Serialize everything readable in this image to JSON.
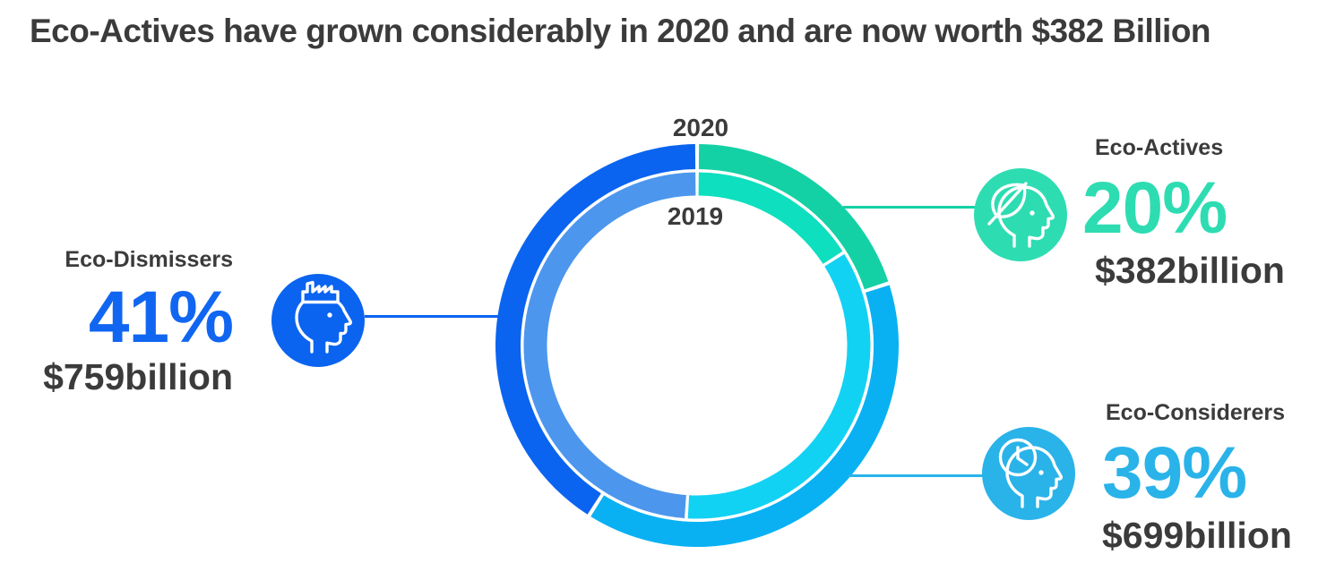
{
  "title": "Eco-Actives have grown considerably in 2020 and are now worth $382 Billion",
  "colors": {
    "dark_text": "#3b3b3b",
    "blue_2020": "#0b64f0",
    "blue_2019": "#4d96ee",
    "blue_accent": "#1166f1",
    "cyan_2020": "#09b1f3",
    "cyan_2019": "#12d2f3",
    "cyan_accent": "#29b3e9",
    "green_2020": "#14d1a5",
    "green_2019": "#0edfbe",
    "green_accent": "#2edcb2"
  },
  "chart_data": {
    "type": "donut",
    "title": "Eco-Actives have grown considerably in 2020 and are now worth $382 Billion",
    "direction": "clockwise",
    "start_angle_deg": 0,
    "rings": [
      {
        "label": "2020",
        "position": "outer",
        "segments": [
          {
            "name": "Eco-Actives",
            "value": 20,
            "color_key": "green_2020"
          },
          {
            "name": "Eco-Considerers",
            "value": 39,
            "color_key": "cyan_2020"
          },
          {
            "name": "Eco-Dismissers",
            "value": 41,
            "color_key": "blue_2020"
          }
        ]
      },
      {
        "label": "2019",
        "position": "inner",
        "segments": [
          {
            "name": "Eco-Actives",
            "value": 16,
            "color_key": "green_2019"
          },
          {
            "name": "Eco-Considerers",
            "value": 35,
            "color_key": "cyan_2019"
          },
          {
            "name": "Eco-Dismissers",
            "value": 49,
            "color_key": "blue_2019"
          }
        ]
      }
    ]
  },
  "callouts": {
    "dismissers": {
      "label": "Eco-Dismissers",
      "percent": "41%",
      "amount": "$759billion",
      "icon": "factory-head-icon",
      "color": "#0b64f0"
    },
    "actives": {
      "label": "Eco-Actives",
      "percent": "20%",
      "amount": "$382billion",
      "icon": "leaf-head-icon",
      "color": "#2edcb2"
    },
    "considerers": {
      "label": "Eco-Considerers",
      "percent": "39%",
      "amount": "$699billion",
      "icon": "clock-head-icon",
      "color": "#29b3e9"
    }
  }
}
